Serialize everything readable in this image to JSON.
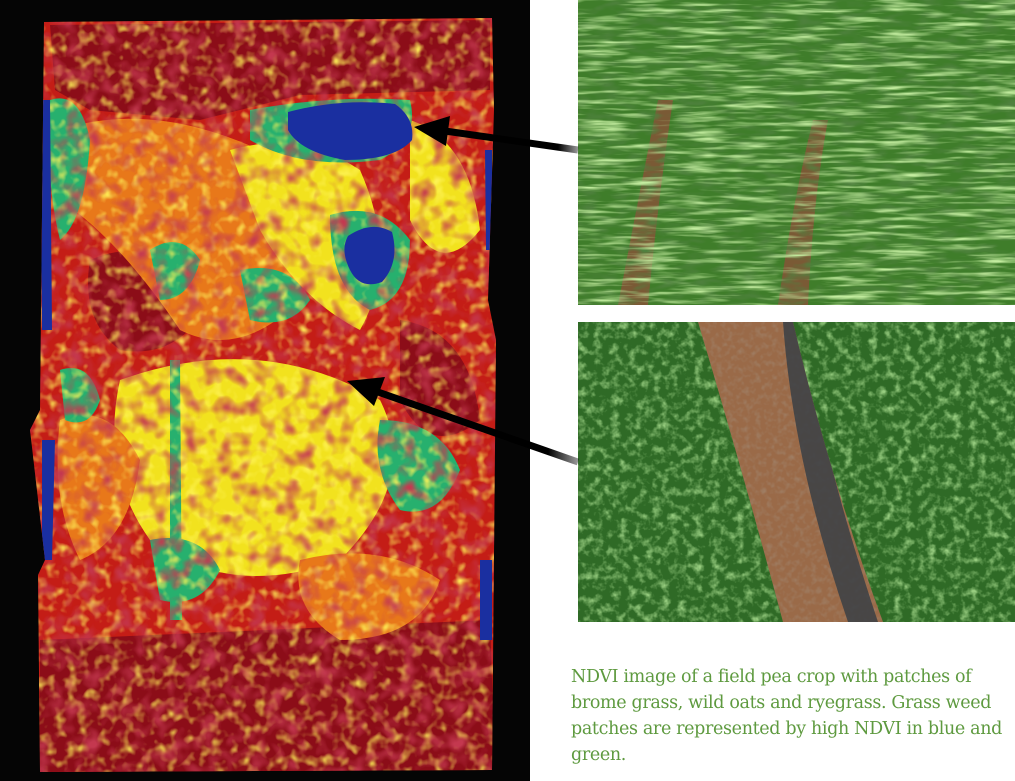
{
  "figure": {
    "caption": "NDVI image of a field pea crop with patches of brome grass, wild oats and ryegrass. Grass weed patches are represented by high NDVI in blue and green.",
    "colors": {
      "background": "#ffffff",
      "map_black": "#050505",
      "ndvi_low": "#8c0d18",
      "ndvi_mid_red": "#c41d16",
      "ndvi_orange": "#e8781a",
      "ndvi_yellow": "#f2e21e",
      "ndvi_green": "#27b06e",
      "ndvi_blue": "#1a2fa0",
      "caption_text": "#5e9a3f",
      "arrow": "#000000"
    },
    "photos": [
      {
        "name": "grass-weed-patch-photo",
        "subject": "dense grass weeds among crop"
      },
      {
        "name": "field-pea-crop-photo",
        "subject": "field pea rows with bare soil between"
      }
    ]
  }
}
